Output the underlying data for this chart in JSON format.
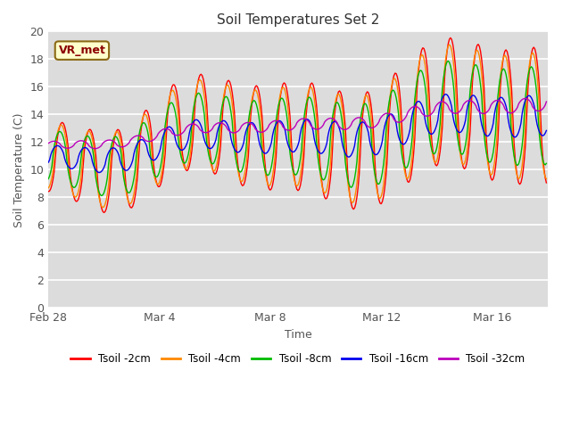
{
  "title": "Soil Temperatures Set 2",
  "xlabel": "Time",
  "ylabel": "Soil Temperature (C)",
  "ylim": [
    0,
    20
  ],
  "yticks": [
    0,
    2,
    4,
    6,
    8,
    10,
    12,
    14,
    16,
    18,
    20
  ],
  "plot_bg_color": "#dcdcdc",
  "outer_bg_color": "#f0f0f0",
  "fig_bg_color": "#ffffff",
  "lines": [
    {
      "label": "Tsoil -2cm",
      "color": "#ff0000"
    },
    {
      "label": "Tsoil -4cm",
      "color": "#ff8800"
    },
    {
      "label": "Tsoil -8cm",
      "color": "#00bb00"
    },
    {
      "label": "Tsoil -16cm",
      "color": "#0000ee"
    },
    {
      "label": "Tsoil -32cm",
      "color": "#bb00bb"
    }
  ],
  "annotation_text": "VR_met",
  "xtick_labels": [
    "Feb 28",
    "Mar 4",
    "Mar 8",
    "Mar 12",
    "Mar 16"
  ],
  "xtick_positions": [
    0,
    4,
    8,
    12,
    16
  ]
}
